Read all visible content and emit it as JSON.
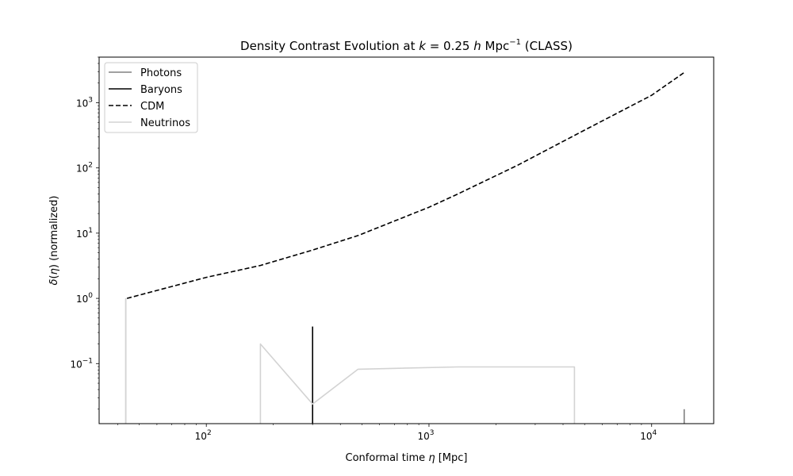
{
  "chart_data": {
    "type": "line",
    "title_parts": {
      "pre": "Density Contrast Evolution at ",
      "k": "k",
      "eq": " = 0.25 ",
      "h": "h",
      "unit": " Mpc",
      "exp": "−1",
      "post": " (CLASS)"
    },
    "xlabel_parts": {
      "pre": "Conformal time ",
      "sym": "η",
      "post": " [Mpc]"
    },
    "ylabel_parts": {
      "sym1": "δ",
      "paren1": "(",
      "sym2": "η",
      "paren2": ")",
      "post": " (normalized)"
    },
    "x_scale": "log",
    "y_scale": "log",
    "xlim": [
      33,
      19000
    ],
    "ylim": [
      0.012,
      5000
    ],
    "x_ticks": [
      {
        "value": 100,
        "base": "10",
        "exp": "2"
      },
      {
        "value": 1000,
        "base": "10",
        "exp": "3"
      },
      {
        "value": 10000,
        "base": "10",
        "exp": "4"
      }
    ],
    "y_ticks": [
      {
        "value": 0.1,
        "base": "10",
        "exp": "−1"
      },
      {
        "value": 1,
        "base": "10",
        "exp": "0"
      },
      {
        "value": 10,
        "base": "10",
        "exp": "1"
      },
      {
        "value": 100,
        "base": "10",
        "exp": "2"
      },
      {
        "value": 1000,
        "base": "10",
        "exp": "3"
      }
    ],
    "legend_position": "upper-left",
    "series": [
      {
        "name": "Photons",
        "color": "#808080",
        "style": "solid",
        "points": [
          [
            43.5,
            0.012
          ],
          [
            43.5,
            1.0
          ],
          [
            14000,
            0.012
          ],
          [
            14000,
            0.02
          ]
        ],
        "segments": [
          [
            0,
            1
          ],
          [
            2,
            3
          ]
        ]
      },
      {
        "name": "Baryons",
        "color": "#000000",
        "style": "solid",
        "points": [
          [
            300,
            0.012
          ],
          [
            300,
            0.37
          ]
        ],
        "segments": [
          [
            0,
            1
          ]
        ]
      },
      {
        "name": "CDM",
        "color": "#000000",
        "style": "dashed",
        "points": [
          [
            44,
            1.0
          ],
          [
            100,
            2.1
          ],
          [
            175,
            3.2
          ],
          [
            300,
            5.5
          ],
          [
            480,
            9.2
          ],
          [
            1000,
            25
          ],
          [
            1350,
            40
          ],
          [
            2500,
            110
          ],
          [
            5000,
            380
          ],
          [
            10000,
            1300
          ],
          [
            14000,
            2900
          ]
        ],
        "segments": [
          [
            0,
            10
          ]
        ]
      },
      {
        "name": "Neutrinos",
        "color": "#d3d3d3",
        "style": "solid",
        "points": [
          [
            43.5,
            0.012
          ],
          [
            43.5,
            1.0
          ],
          [
            175,
            0.012
          ],
          [
            175,
            0.2
          ],
          [
            300,
            0.024
          ],
          [
            480,
            0.082
          ],
          [
            1350,
            0.089
          ],
          [
            4500,
            0.089
          ],
          [
            4500,
            0.012
          ]
        ],
        "segments": [
          [
            0,
            1
          ],
          [
            2,
            8
          ]
        ]
      }
    ]
  }
}
